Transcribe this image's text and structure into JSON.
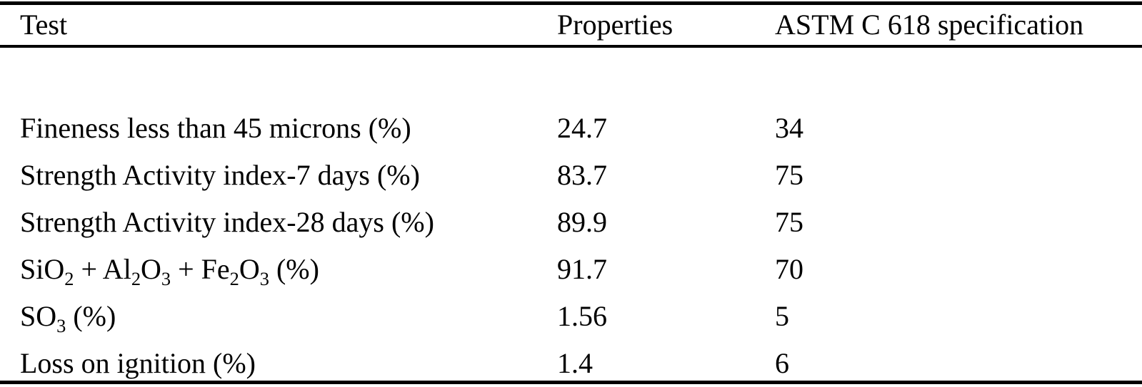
{
  "table": {
    "colors": {
      "text": "#000000",
      "background": "#ffffff",
      "rule": "#000000"
    },
    "columns": [
      {
        "label": "Test"
      },
      {
        "label": "Properties"
      },
      {
        "label": "ASTM C 618 specification"
      }
    ],
    "rows": [
      {
        "test": "Fineness less than 45 microns (%)",
        "properties": "24.7",
        "astm": "34"
      },
      {
        "test": "Strength Activity index-7 days (%)",
        "properties": "83.7",
        "astm": "75"
      },
      {
        "test": "Strength Activity index-28 days (%)",
        "properties": "89.9",
        "astm": "75"
      },
      {
        "test": "SiO₂ + Al₂O₃ + Fe₂O₃ (%)",
        "properties": "91.7",
        "astm": "70"
      },
      {
        "test": "SO₃ (%)",
        "properties": "1.56",
        "astm": "5"
      },
      {
        "test": "Loss on ignition (%)",
        "properties": "1.4",
        "astm": "6"
      }
    ]
  }
}
